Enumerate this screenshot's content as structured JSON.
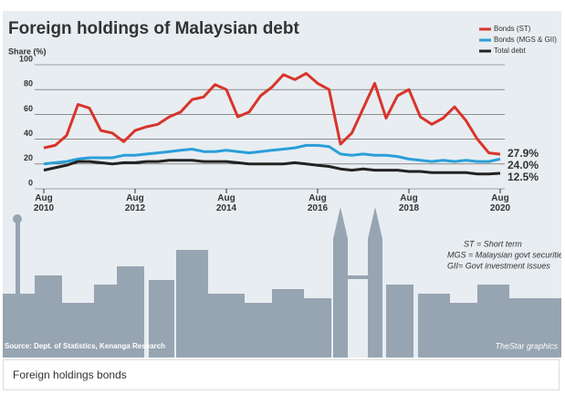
{
  "chart_data": {
    "type": "line",
    "title": "Foreign holdings of Malaysian debt",
    "y_label": "Share (%)",
    "x": [
      "2010-08",
      "2010-11",
      "2011-02",
      "2011-05",
      "2011-08",
      "2011-11",
      "2012-02",
      "2012-05",
      "2012-08",
      "2012-11",
      "2013-02",
      "2013-05",
      "2013-08",
      "2013-11",
      "2014-02",
      "2014-05",
      "2014-08",
      "2014-11",
      "2015-02",
      "2015-05",
      "2015-08",
      "2015-11",
      "2016-02",
      "2016-05",
      "2016-08",
      "2016-11",
      "2017-02",
      "2017-05",
      "2017-08",
      "2017-11",
      "2018-02",
      "2018-05",
      "2018-08",
      "2018-11",
      "2019-02",
      "2019-05",
      "2019-08",
      "2019-11",
      "2020-02",
      "2020-05",
      "2020-08"
    ],
    "series": [
      {
        "name": "Bonds (ST)",
        "color": "#d9342b",
        "values": [
          33,
          35,
          43,
          68,
          65,
          47,
          45,
          38,
          47,
          50,
          52,
          58,
          62,
          72,
          74,
          84,
          80,
          58,
          62,
          75,
          82,
          92,
          88,
          93,
          85,
          80,
          36,
          45,
          65,
          85,
          57,
          75,
          80,
          58,
          52,
          57,
          66,
          55,
          40,
          29,
          27.9
        ],
        "value_labels": [
          null,
          null,
          null,
          null,
          null,
          null,
          null,
          null,
          null,
          null,
          null,
          null,
          null,
          null,
          null,
          null,
          null,
          null,
          null,
          null,
          null,
          null,
          null,
          null,
          null,
          null,
          null,
          null,
          null,
          null,
          null,
          null,
          null,
          null,
          null,
          null,
          null,
          null,
          null,
          null,
          "27.9%"
        ]
      },
      {
        "name": "Bonds (MGS & GII)",
        "color": "#2a9fd8",
        "values": [
          20,
          21,
          22,
          24,
          25,
          25,
          25,
          27,
          27,
          28,
          29,
          30,
          31,
          32,
          30,
          30,
          31,
          30,
          29,
          30,
          31,
          32,
          33,
          35,
          35,
          34,
          28,
          27,
          28,
          27,
          27,
          26,
          24,
          23,
          22,
          23,
          22,
          23,
          22,
          22,
          24.0
        ],
        "value_labels": [
          null,
          null,
          null,
          null,
          null,
          null,
          null,
          null,
          null,
          null,
          null,
          null,
          null,
          null,
          null,
          null,
          null,
          null,
          null,
          null,
          null,
          null,
          null,
          null,
          null,
          null,
          null,
          null,
          null,
          null,
          null,
          null,
          null,
          null,
          null,
          null,
          null,
          null,
          null,
          null,
          "24.0%"
        ]
      },
      {
        "name": "Total debt",
        "color": "#222222",
        "values": [
          15,
          17,
          19,
          22,
          22,
          21,
          20,
          21,
          21,
          22,
          22,
          23,
          23,
          23,
          22,
          22,
          22,
          21,
          20,
          20,
          20,
          20,
          21,
          20,
          19,
          18,
          16,
          15,
          16,
          15,
          15,
          15,
          14,
          14,
          13,
          13,
          13,
          13,
          12,
          12,
          12.5
        ],
        "value_labels": [
          null,
          null,
          null,
          null,
          null,
          null,
          null,
          null,
          null,
          null,
          null,
          null,
          null,
          null,
          null,
          null,
          null,
          null,
          null,
          null,
          null,
          null,
          null,
          null,
          null,
          null,
          null,
          null,
          null,
          null,
          null,
          null,
          null,
          null,
          null,
          null,
          null,
          null,
          null,
          null,
          "12.5%"
        ]
      }
    ],
    "xlim": [
      "2010-08",
      "2020-08"
    ],
    "xticks": [
      {
        "value": "2010-08",
        "label": "Aug 2010"
      },
      {
        "value": "2012-08",
        "label": "Aug 2012"
      },
      {
        "value": "2014-08",
        "label": "Aug 2014"
      },
      {
        "value": "2016-08",
        "label": "Aug 2016"
      },
      {
        "value": "2018-08",
        "label": "Aug 2018"
      },
      {
        "value": "2020-08",
        "label": "Aug 2020"
      }
    ],
    "ylim": [
      0,
      100
    ],
    "yticks": [
      0,
      20,
      40,
      60,
      80,
      100
    ],
    "grid": true,
    "legend": "top-right",
    "notes": [
      "ST = Short term",
      "MGS = Malaysian govt securities",
      "GII= Govt investment issues"
    ],
    "source": "Source: Dept. of Statistics, Kenanga Research",
    "credit": "TheStar graphics"
  },
  "caption": "Foreign holdings bonds"
}
